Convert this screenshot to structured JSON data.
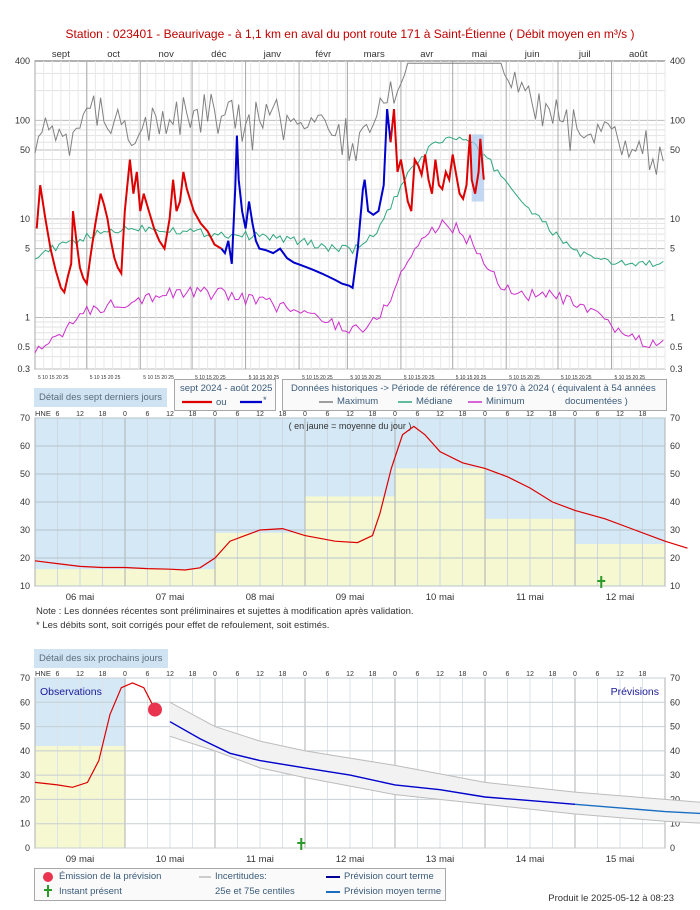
{
  "title": "Station : 023401      -   Beaurivage - à 1,1 km en aval du pont route 171 à Saint-Étienne   ( Débit moyen en m³/s )",
  "chart_data": [
    {
      "type": "line",
      "log_scale": true,
      "months": [
        "sept",
        "oct",
        "nov",
        "déc",
        "janv",
        "févr",
        "mars",
        "avr",
        "mai",
        "juin",
        "juil",
        "août"
      ],
      "day_ticks": "5 10 15 20 25",
      "y_ticks": [
        "0.3",
        "0.5",
        "1",
        "5",
        "10",
        "50",
        "100",
        "400"
      ],
      "ylim": [
        0.3,
        400
      ],
      "legend_period": "sept 2024 - août 2025",
      "legend_or": "ou",
      "legend_star": "*",
      "hist_title": "Données historiques -> Période de référence  de 1970 à 2024   ( équivalent à 54 années",
      "hist_docs": "documentées )",
      "series": [
        {
          "name": "Maximum",
          "color": "#808080"
        },
        {
          "name": "Médiane",
          "color": "#2ea77e"
        },
        {
          "name": "Minimum",
          "color": "#cc2fcc"
        },
        {
          "name": "",
          "color": "#dd0000",
          "values": [
            [
              1,
              8
            ],
            [
              3,
              22
            ],
            [
              6,
              10
            ],
            [
              9,
              5
            ],
            [
              12,
              3
            ],
            [
              15,
              2
            ],
            [
              17,
              1.8
            ],
            [
              19,
              2.6
            ],
            [
              21,
              3.5
            ],
            [
              22,
              12
            ],
            [
              24,
              6
            ],
            [
              26,
              3.2
            ],
            [
              28,
              2.5
            ],
            [
              30,
              2.2
            ],
            [
              32,
              4
            ],
            [
              35,
              9
            ],
            [
              38,
              18
            ],
            [
              40,
              14
            ],
            [
              42,
              10
            ],
            [
              44,
              6
            ],
            [
              46,
              4
            ],
            [
              48,
              3.2
            ],
            [
              50,
              2.8
            ],
            [
              52,
              12
            ],
            [
              55,
              40
            ],
            [
              57,
              18
            ],
            [
              59,
              30
            ],
            [
              61,
              12
            ],
            [
              63,
              18
            ],
            [
              66,
              12
            ],
            [
              69,
              8
            ],
            [
              72,
              6
            ],
            [
              75,
              5
            ],
            [
              78,
              10
            ],
            [
              80,
              25
            ],
            [
              82,
              12
            ],
            [
              84,
              15
            ],
            [
              86,
              30
            ],
            [
              88,
              20
            ],
            [
              92,
              12
            ],
            [
              96,
              9
            ],
            [
              100,
              7.5
            ],
            [
              104,
              5.5
            ],
            [
              108,
              5
            ]
          ]
        },
        {
          "name": "",
          "color": "#0000cc",
          "values": [
            [
              108,
              5
            ],
            [
              110,
              4.5
            ],
            [
              112,
              6
            ],
            [
              114,
              3.5
            ],
            [
              116,
              20
            ],
            [
              117,
              70
            ],
            [
              118,
              25
            ],
            [
              120,
              12
            ],
            [
              122,
              8
            ],
            [
              124,
              15
            ],
            [
              126,
              9
            ],
            [
              128,
              6
            ],
            [
              130,
              5
            ],
            [
              134,
              4.8
            ],
            [
              138,
              4.5
            ],
            [
              142,
              5
            ],
            [
              146,
              4
            ],
            [
              150,
              3.6
            ],
            [
              154,
              3.4
            ],
            [
              158,
              3.2
            ],
            [
              162,
              3
            ],
            [
              166,
              2.8
            ],
            [
              170,
              2.6
            ],
            [
              174,
              2.4
            ],
            [
              178,
              2.2
            ],
            [
              182,
              2.1
            ],
            [
              184,
              2
            ],
            [
              187,
              5
            ],
            [
              188,
              8
            ],
            [
              190,
              20
            ],
            [
              191,
              25
            ],
            [
              193,
              12
            ],
            [
              196,
              11
            ],
            [
              199,
              12
            ],
            [
              202,
              22
            ],
            [
              204,
              130
            ],
            [
              206,
              60
            ]
          ]
        },
        {
          "name": "",
          "color": "#dd0000",
          "values": [
            [
              206,
              60
            ],
            [
              208,
              130
            ],
            [
              210,
              30
            ],
            [
              212,
              40
            ],
            [
              214,
              25
            ],
            [
              216,
              15
            ],
            [
              218,
              12
            ],
            [
              220,
              40
            ],
            [
              222,
              35
            ],
            [
              224,
              28
            ],
            [
              226,
              45
            ],
            [
              228,
              25
            ],
            [
              230,
              18
            ],
            [
              232,
              40
            ],
            [
              234,
              22
            ],
            [
              236,
              20
            ],
            [
              238,
              30
            ],
            [
              240,
              25
            ],
            [
              242,
              45
            ],
            [
              244,
              28
            ],
            [
              246,
              18
            ],
            [
              248,
              16
            ],
            [
              250,
              22
            ],
            [
              251,
              40
            ],
            [
              252,
              72
            ],
            [
              253,
              25
            ],
            [
              255,
              18
            ],
            [
              257,
              30
            ],
            [
              258,
              65
            ],
            [
              259,
              40
            ],
            [
              260,
              25
            ]
          ]
        }
      ]
    },
    {
      "type": "area",
      "title": "Détail des sept derniers jours",
      "ylabel": "HNE",
      "annotation": "( en jaune = moyenne du jour )",
      "x_hours": [
        "6",
        "12",
        "18",
        "0"
      ],
      "day_labels": [
        "06 mai",
        "07 mai",
        "08 mai",
        "09 mai",
        "10 mai",
        "11 mai",
        "12 mai"
      ],
      "y_ticks": [
        10,
        20,
        30,
        40,
        50,
        60,
        70
      ],
      "ylim": [
        10,
        70
      ],
      "daily_mean": [
        16,
        16,
        29,
        42,
        52,
        34,
        25
      ],
      "series": [
        {
          "name": "",
          "color": "#dd0000",
          "values": [
            [
              0,
              19
            ],
            [
              6,
              18
            ],
            [
              12,
              17
            ],
            [
              18,
              16.6
            ],
            [
              24,
              16.6
            ],
            [
              30,
              16.2
            ],
            [
              36,
              16
            ],
            [
              40,
              15.7
            ],
            [
              44,
              16.5
            ],
            [
              48,
              20
            ],
            [
              52,
              26
            ],
            [
              56,
              28
            ],
            [
              60,
              30
            ],
            [
              66,
              30.5
            ],
            [
              72,
              28
            ],
            [
              80,
              26
            ],
            [
              86,
              25.5
            ],
            [
              90,
              28
            ],
            [
              92,
              36
            ],
            [
              95,
              52
            ],
            [
              98,
              64
            ],
            [
              101,
              67
            ],
            [
              104,
              64
            ],
            [
              108,
              58
            ],
            [
              114,
              54
            ],
            [
              120,
              52
            ],
            [
              126,
              49
            ],
            [
              132,
              45
            ],
            [
              138,
              40
            ],
            [
              144,
              37
            ],
            [
              152,
              34
            ],
            [
              160,
              30
            ],
            [
              168,
              26
            ],
            [
              174,
              23.5
            ]
          ]
        }
      ]
    },
    {
      "type": "line",
      "title": "Détail des six prochains jours",
      "ylabel": "HNE",
      "observations_label": "Observations",
      "forecast_label": "Prévisions",
      "x_hours": [
        "6",
        "12",
        "18",
        "0"
      ],
      "day_labels": [
        "09 mai",
        "10 mai",
        "11 mai",
        "12 mai",
        "13 mai",
        "14 mai",
        "15 mai"
      ],
      "y_ticks": [
        0,
        10,
        20,
        30,
        40,
        50,
        60,
        70
      ],
      "ylim": [
        0,
        70
      ],
      "daily_mean": [
        42
      ],
      "issue_point": [
        32,
        57
      ],
      "series": [
        {
          "name": "",
          "color": "#dd0000",
          "values": [
            [
              0,
              27
            ],
            [
              6,
              26
            ],
            [
              10,
              25
            ],
            [
              14,
              27
            ],
            [
              17,
              36
            ],
            [
              20,
              55
            ],
            [
              23,
              66
            ],
            [
              26,
              68
            ],
            [
              29,
              66
            ],
            [
              31,
              60
            ],
            [
              32,
              57
            ]
          ]
        },
        {
          "name": "",
          "color": "#0000cc",
          "values": [
            [
              36,
              52
            ],
            [
              44,
              45
            ],
            [
              52,
              39
            ],
            [
              60,
              36
            ],
            [
              72,
              33
            ],
            [
              84,
              30
            ],
            [
              96,
              26
            ],
            [
              108,
              24
            ],
            [
              120,
              21
            ],
            [
              132,
              19.5
            ],
            [
              144,
              18
            ]
          ]
        },
        {
          "name": "",
          "color": "#1a6ec2",
          "values": [
            [
              144,
              18
            ],
            [
              156,
              16.5
            ],
            [
              168,
              15
            ],
            [
              180,
              14
            ],
            [
              192,
              13
            ],
            [
              204,
              12
            ],
            [
              216,
              11
            ],
            [
              228,
              10
            ]
          ]
        },
        {
          "name": "",
          "color": "#bcbcbc",
          "values": [
            [
              36,
              60
            ],
            [
              48,
              50
            ],
            [
              60,
              44
            ],
            [
              72,
              40
            ],
            [
              96,
              34
            ],
            [
              120,
              27
            ],
            [
              144,
              23
            ],
            [
              168,
              20
            ],
            [
              192,
              17
            ],
            [
              216,
              14
            ],
            [
              228,
              13
            ]
          ]
        },
        {
          "name": "",
          "color": "#bcbcbc",
          "values": [
            [
              36,
              46
            ],
            [
              48,
              40
            ],
            [
              60,
              33
            ],
            [
              72,
              29
            ],
            [
              96,
              22
            ],
            [
              120,
              18
            ],
            [
              144,
              14
            ],
            [
              168,
              11
            ],
            [
              192,
              9
            ],
            [
              216,
              7.5
            ],
            [
              228,
              7
            ]
          ]
        }
      ]
    }
  ],
  "notes": [
    "Note : Les données récentes sont préliminaires et sujettes à modification après validation.",
    "* Les débits sont, soit corrigés pour effet de refoulement, soit estimés."
  ],
  "legend3": {
    "emission": "Émission de la prévision",
    "present": "Instant présent",
    "incert": "Incertitudes:",
    "centiles": "25e et 75e centiles",
    "court": "Prévision court terme",
    "moyen": "Prévision moyen terme"
  },
  "footer": "Produit le 2025-05-12 à 08:23",
  "colors": {
    "observed": "#dd0000",
    "corrected": "#0000cc",
    "median": "#2ea77e",
    "maximum": "#808080",
    "minimum": "#cc2fcc",
    "forecast_mid": "#1a6ec2",
    "background_blue": "#d4e8f6",
    "mean_yellow": "#f5f8d0"
  }
}
